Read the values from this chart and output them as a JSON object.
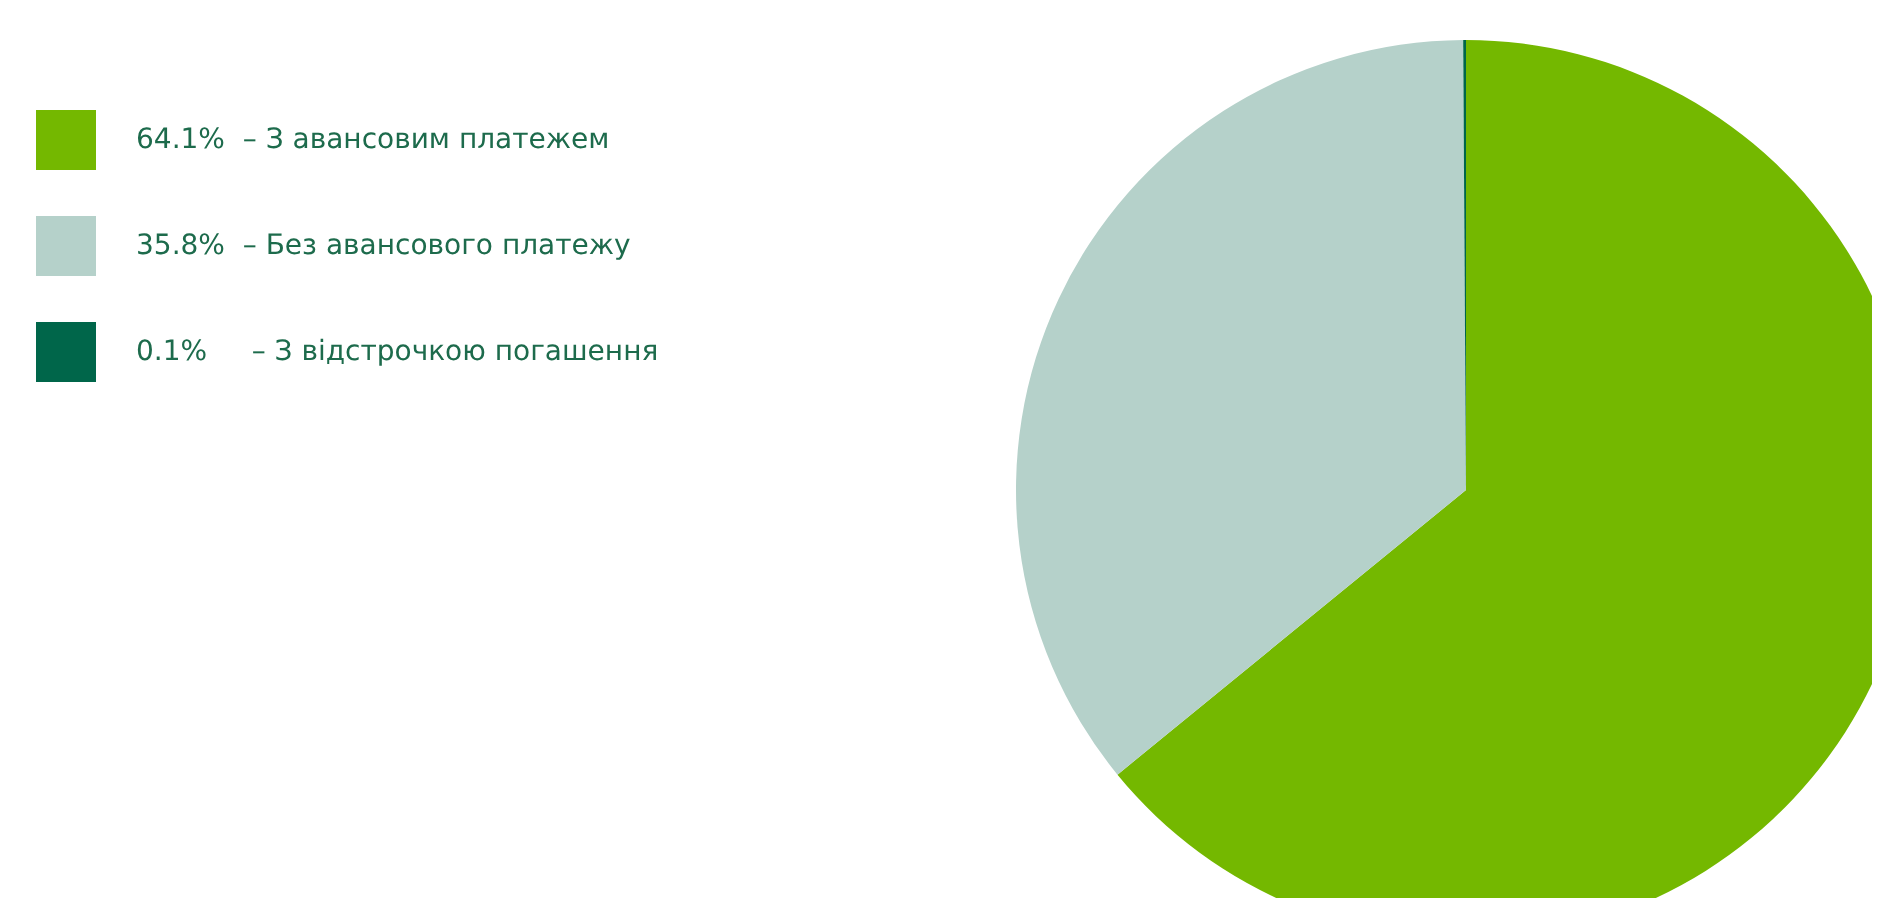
{
  "chart_data": {
    "type": "pie",
    "categories": [
      "64.1%  – З авансовим платежем",
      "35.8%  – Без авансового платежу",
      "0.1%     – З відстрочкою погашення"
    ],
    "values": [
      64.1,
      35.8,
      0.1
    ],
    "colors": [
      "#74b800",
      "#b5d1ca",
      "#00664a"
    ],
    "legend": "top left"
  }
}
